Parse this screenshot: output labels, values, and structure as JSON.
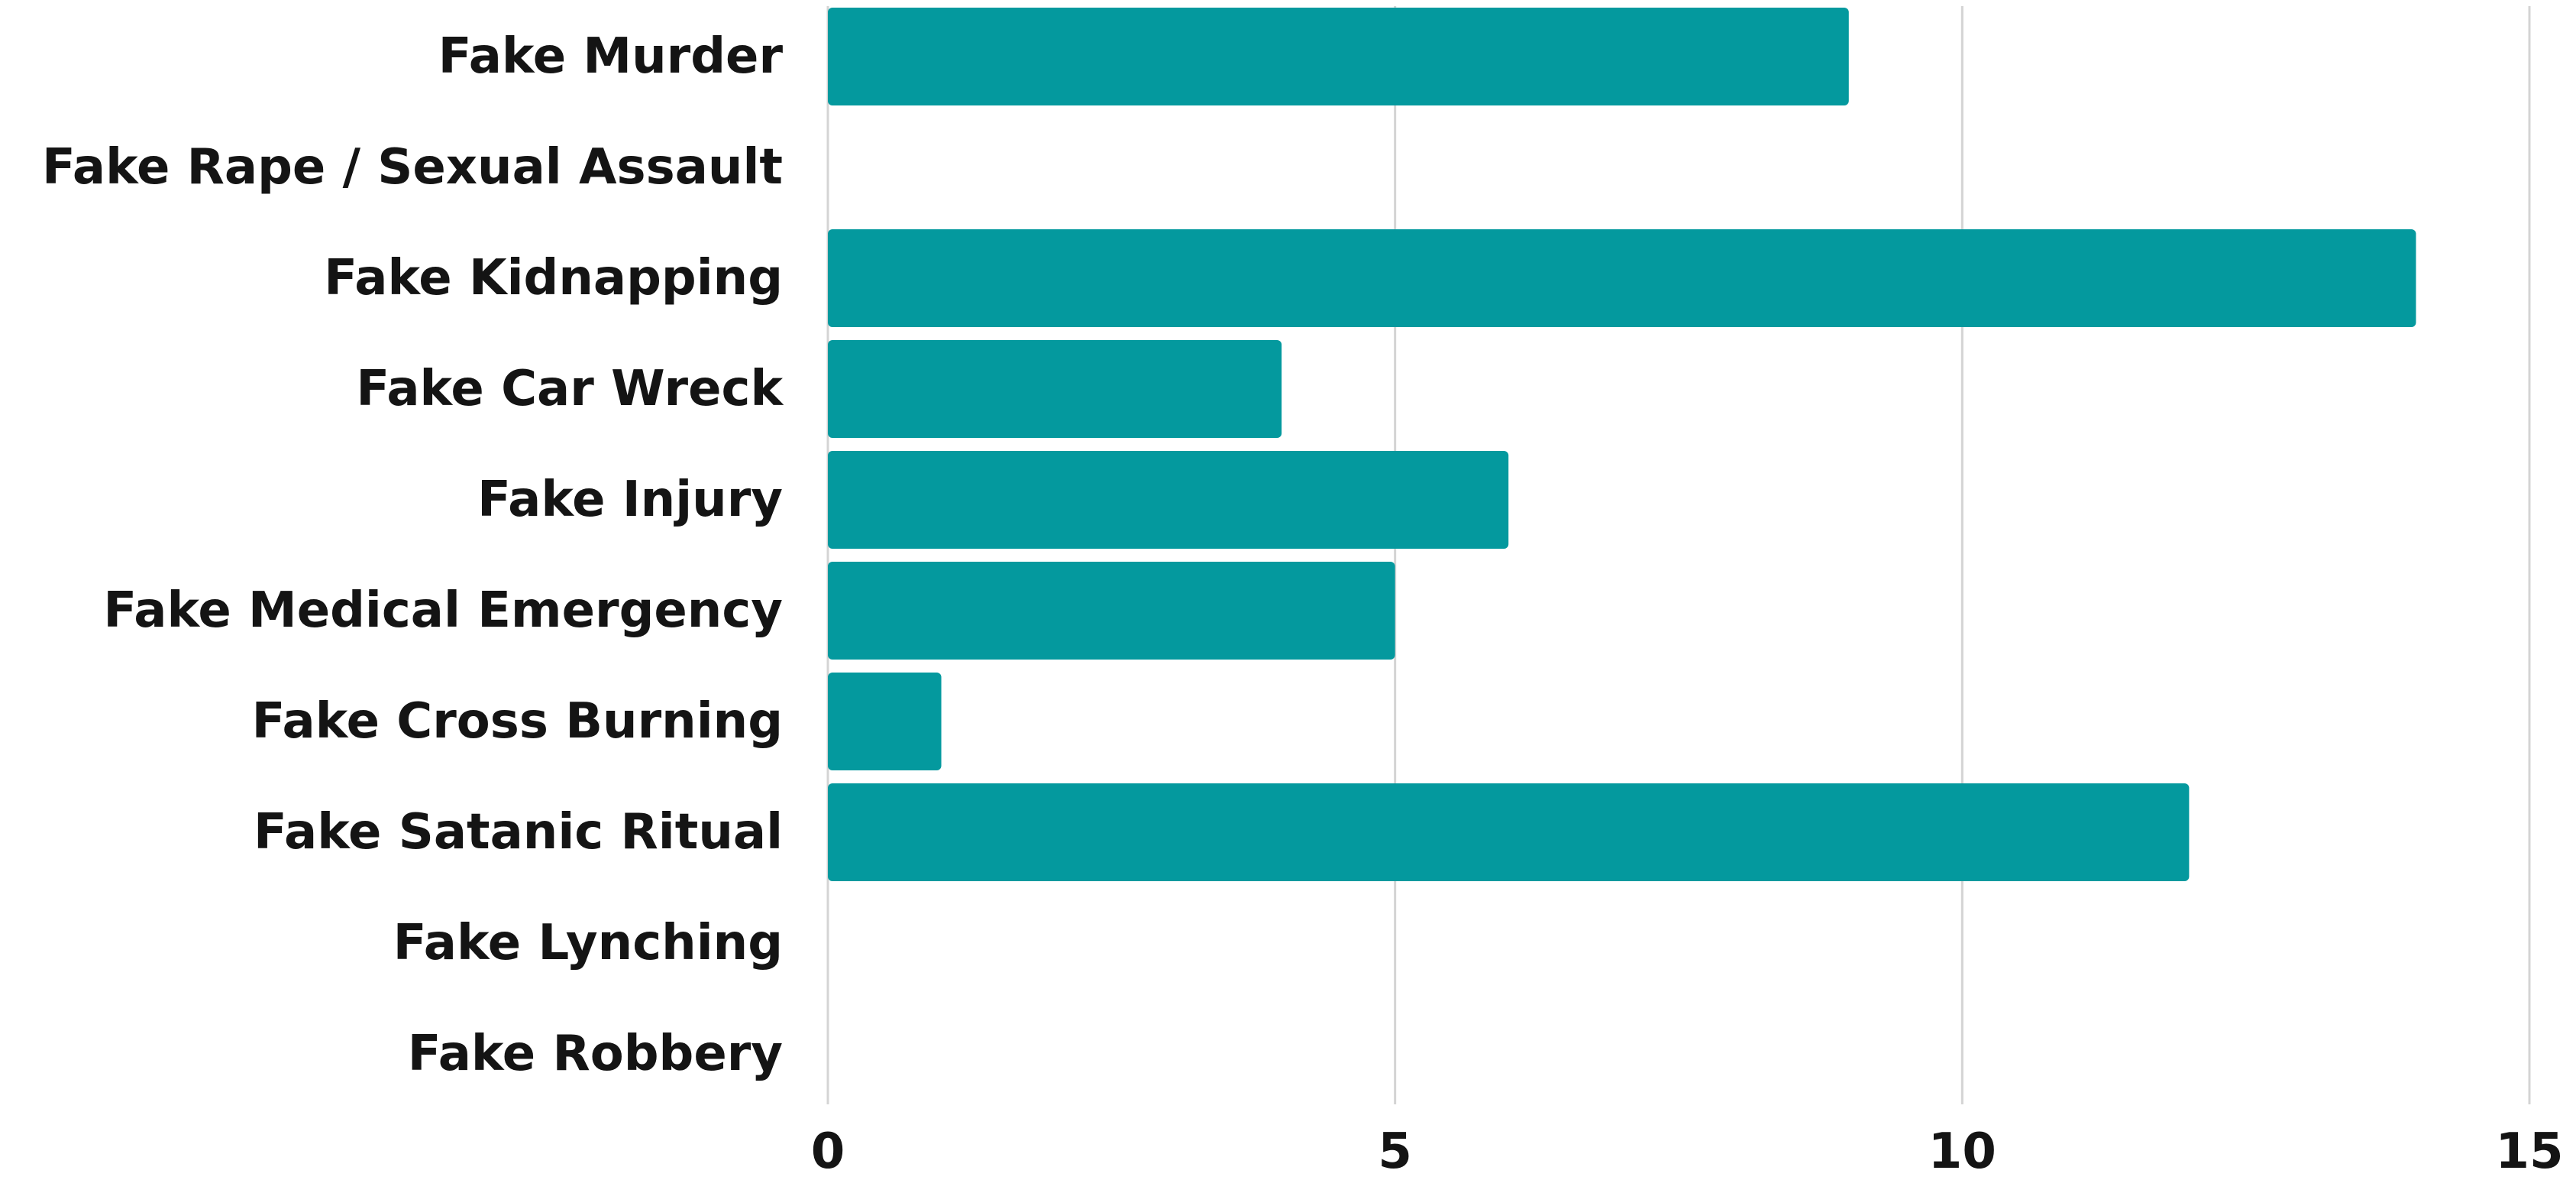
{
  "chart_data": {
    "type": "bar",
    "orientation": "horizontal",
    "categories": [
      "Fake Murder",
      "Fake Rape / Sexual Assault",
      "Fake Kidnapping",
      "Fake Car Wreck",
      "Fake Injury",
      "Fake Medical Emergency",
      "Fake Cross Burning",
      "Fake Satanic Ritual",
      "Fake Lynching",
      "Fake Robbery"
    ],
    "values": [
      9,
      0,
      14,
      4,
      6,
      5,
      1,
      12,
      0,
      0
    ],
    "xlim": [
      0,
      15
    ],
    "x_ticks": [
      0,
      5,
      10,
      15
    ],
    "x_tick_labels": [
      "0",
      "5",
      "10",
      "15"
    ],
    "title": "",
    "xlabel": "",
    "ylabel": "",
    "grid": "vertical",
    "legend": "none",
    "bar_color": "#04999E"
  }
}
